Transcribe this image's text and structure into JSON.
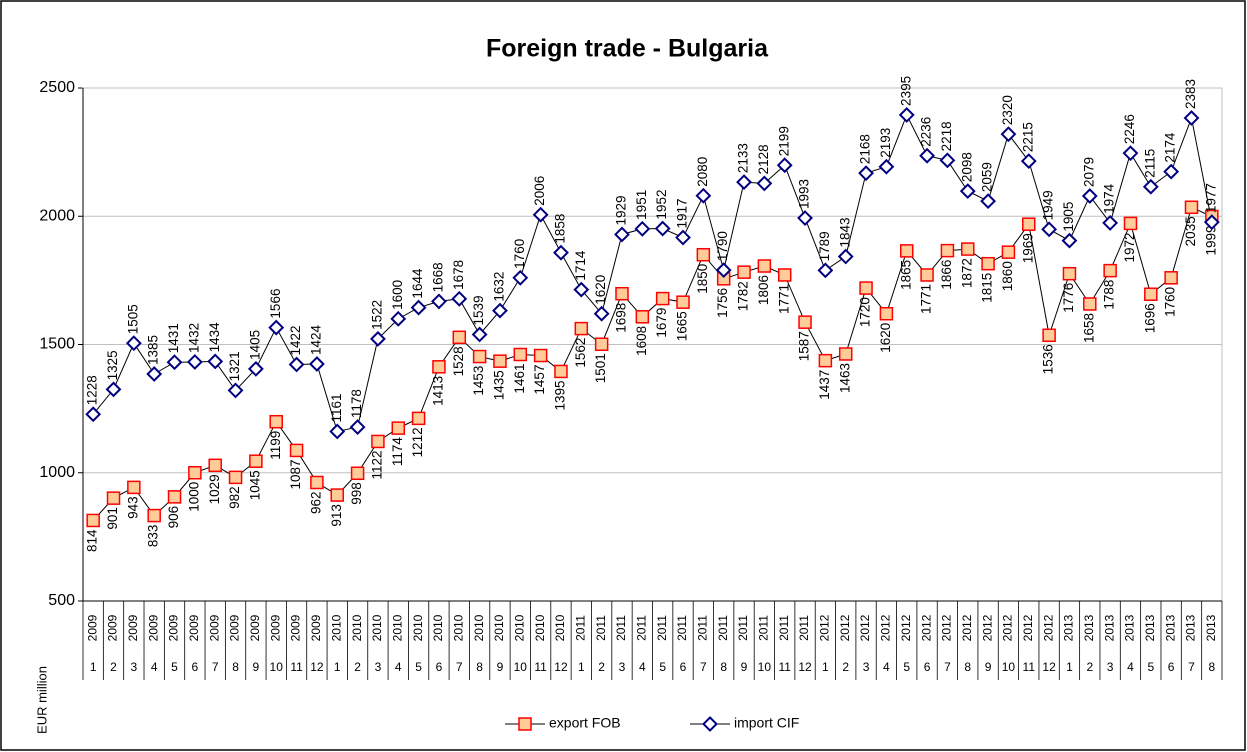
{
  "chart_data": {
    "type": "line",
    "title": "Foreign trade - Bulgaria",
    "y_label": "EUR million",
    "categories": [
      "1",
      "2",
      "3",
      "4",
      "5",
      "6",
      "7",
      "8",
      "9",
      "10",
      "11",
      "12",
      "1",
      "2",
      "3",
      "4",
      "5",
      "6",
      "7",
      "8",
      "9",
      "10",
      "11",
      "12",
      "1",
      "2",
      "3",
      "4",
      "5",
      "6",
      "7",
      "8",
      "9",
      "10",
      "11",
      "12",
      "1",
      "2",
      "3",
      "4",
      "5",
      "6",
      "7",
      "8",
      "9",
      "10",
      "11",
      "12",
      "1",
      "2",
      "3",
      "4",
      "5",
      "6",
      "7",
      "8"
    ],
    "category_years": [
      "2009",
      "2009",
      "2009",
      "2009",
      "2009",
      "2009",
      "2009",
      "2009",
      "2009",
      "2009",
      "2009",
      "2009",
      "2010",
      "2010",
      "2010",
      "2010",
      "2010",
      "2010",
      "2010",
      "2010",
      "2010",
      "2010",
      "2010",
      "2010",
      "2011",
      "2011",
      "2011",
      "2011",
      "2011",
      "2011",
      "2011",
      "2011",
      "2011",
      "2011",
      "2011",
      "2011",
      "2012",
      "2012",
      "2012",
      "2012",
      "2012",
      "2012",
      "2012",
      "2012",
      "2012",
      "2012",
      "2012",
      "2012",
      "2013",
      "2013",
      "2013",
      "2013",
      "2013",
      "2013",
      "2013",
      "2013"
    ],
    "series": [
      {
        "name": "export FOB",
        "color": "#ff0000",
        "marker_fill": "#ffcc99",
        "marker": "square",
        "label_position": "below",
        "values": [
          814,
          901,
          943,
          833,
          906,
          1000,
          1029,
          982,
          1045,
          1199,
          1087,
          962,
          913,
          998,
          1122,
          1174,
          1212,
          1413,
          1528,
          1453,
          1435,
          1461,
          1457,
          1395,
          1562,
          1501,
          1698,
          1608,
          1679,
          1665,
          1850,
          1756,
          1782,
          1806,
          1771,
          1587,
          1437,
          1463,
          1720,
          1620,
          1865,
          1771,
          1866,
          1872,
          1815,
          1860,
          1969,
          1536,
          1776,
          1658,
          1788,
          1972,
          1696,
          1760,
          2035,
          1999
        ]
      },
      {
        "name": "import CIF",
        "color": "#000080",
        "marker_fill": "#ffffff",
        "marker": "diamond",
        "label_position": "above",
        "values": [
          1228,
          1325,
          1505,
          1385,
          1431,
          1432,
          1434,
          1321,
          1405,
          1566,
          1422,
          1424,
          1161,
          1178,
          1522,
          1600,
          1644,
          1668,
          1678,
          1539,
          1632,
          1760,
          2006,
          1858,
          1714,
          1620,
          1929,
          1951,
          1952,
          1917,
          2080,
          1790,
          2133,
          2128,
          2199,
          1993,
          1789,
          1843,
          2168,
          2193,
          2395,
          2236,
          2218,
          2098,
          2059,
          2320,
          2215,
          1949,
          1905,
          2079,
          1974,
          2246,
          2115,
          2174,
          2383,
          1977
        ]
      }
    ],
    "line_color": "#000000",
    "ylim": [
      500,
      2500
    ],
    "yticks": [
      500,
      1000,
      1500,
      2000,
      2500
    ],
    "grid": true,
    "legend": "bottom"
  }
}
